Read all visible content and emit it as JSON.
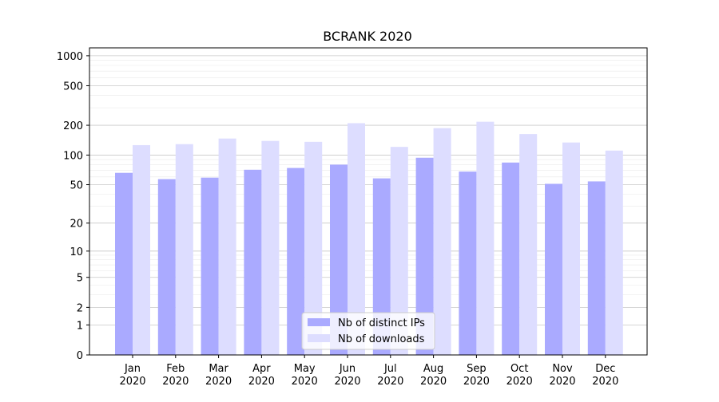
{
  "chart_data": {
    "type": "bar",
    "title": "BCRANK 2020",
    "xlabel": "",
    "ylabel": "",
    "y_scale": "log1p",
    "ylim": [
      0,
      1200
    ],
    "y_ticks": [
      0,
      1,
      2,
      5,
      10,
      20,
      50,
      100,
      200,
      500,
      1000
    ],
    "y_tick_labels": [
      "0",
      "1",
      "2",
      "5",
      "10",
      "20",
      "50",
      "100",
      "200",
      "500",
      "1000"
    ],
    "grid": true,
    "legend_position": "bottom-center",
    "categories": [
      "Jan\n2020",
      "Feb\n2020",
      "Mar\n2020",
      "Apr\n2020",
      "May\n2020",
      "Jun\n2020",
      "Jul\n2020",
      "Aug\n2020",
      "Sep\n2020",
      "Oct\n2020",
      "Nov\n2020",
      "Dec\n2020"
    ],
    "series": [
      {
        "name": "Nb of distinct IPs",
        "color": "#aaaaff",
        "values": [
          66,
          57,
          59,
          71,
          74,
          80,
          58,
          94,
          68,
          84,
          51,
          54
        ]
      },
      {
        "name": "Nb of downloads",
        "color": "#ddddff",
        "values": [
          126,
          129,
          147,
          139,
          136,
          210,
          121,
          187,
          217,
          163,
          134,
          111
        ]
      }
    ]
  }
}
